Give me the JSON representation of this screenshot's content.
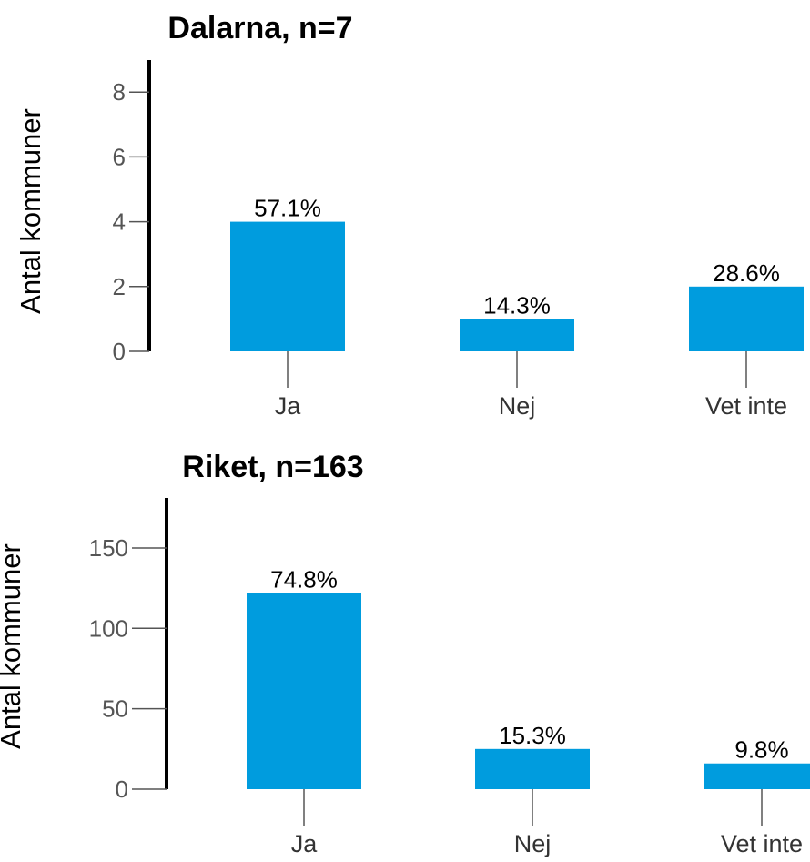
{
  "chart_data": [
    {
      "type": "bar",
      "title": "Dalarna, n=7",
      "ylabel": "Antal kommuner",
      "xlabel": "",
      "categories": [
        "Ja",
        "Nej",
        "Vet inte"
      ],
      "values": [
        4,
        1,
        2
      ],
      "data_labels": [
        "57.1%",
        "14.3%",
        "28.6%"
      ],
      "ylim": [
        0,
        9
      ],
      "yticks": [
        0,
        2,
        4,
        6,
        8
      ],
      "grid": false,
      "bar_color": "#009CDE"
    },
    {
      "type": "bar",
      "title": "Riket, n=163",
      "ylabel": "Antal kommuner",
      "xlabel": "",
      "categories": [
        "Ja",
        "Nej",
        "Vet inte"
      ],
      "values": [
        122,
        25,
        16
      ],
      "data_labels": [
        "74.8%",
        "15.3%",
        "9.8%"
      ],
      "ylim": [
        0,
        180
      ],
      "yticks": [
        0,
        50,
        100,
        150
      ],
      "grid": false,
      "bar_color": "#009CDE"
    }
  ]
}
